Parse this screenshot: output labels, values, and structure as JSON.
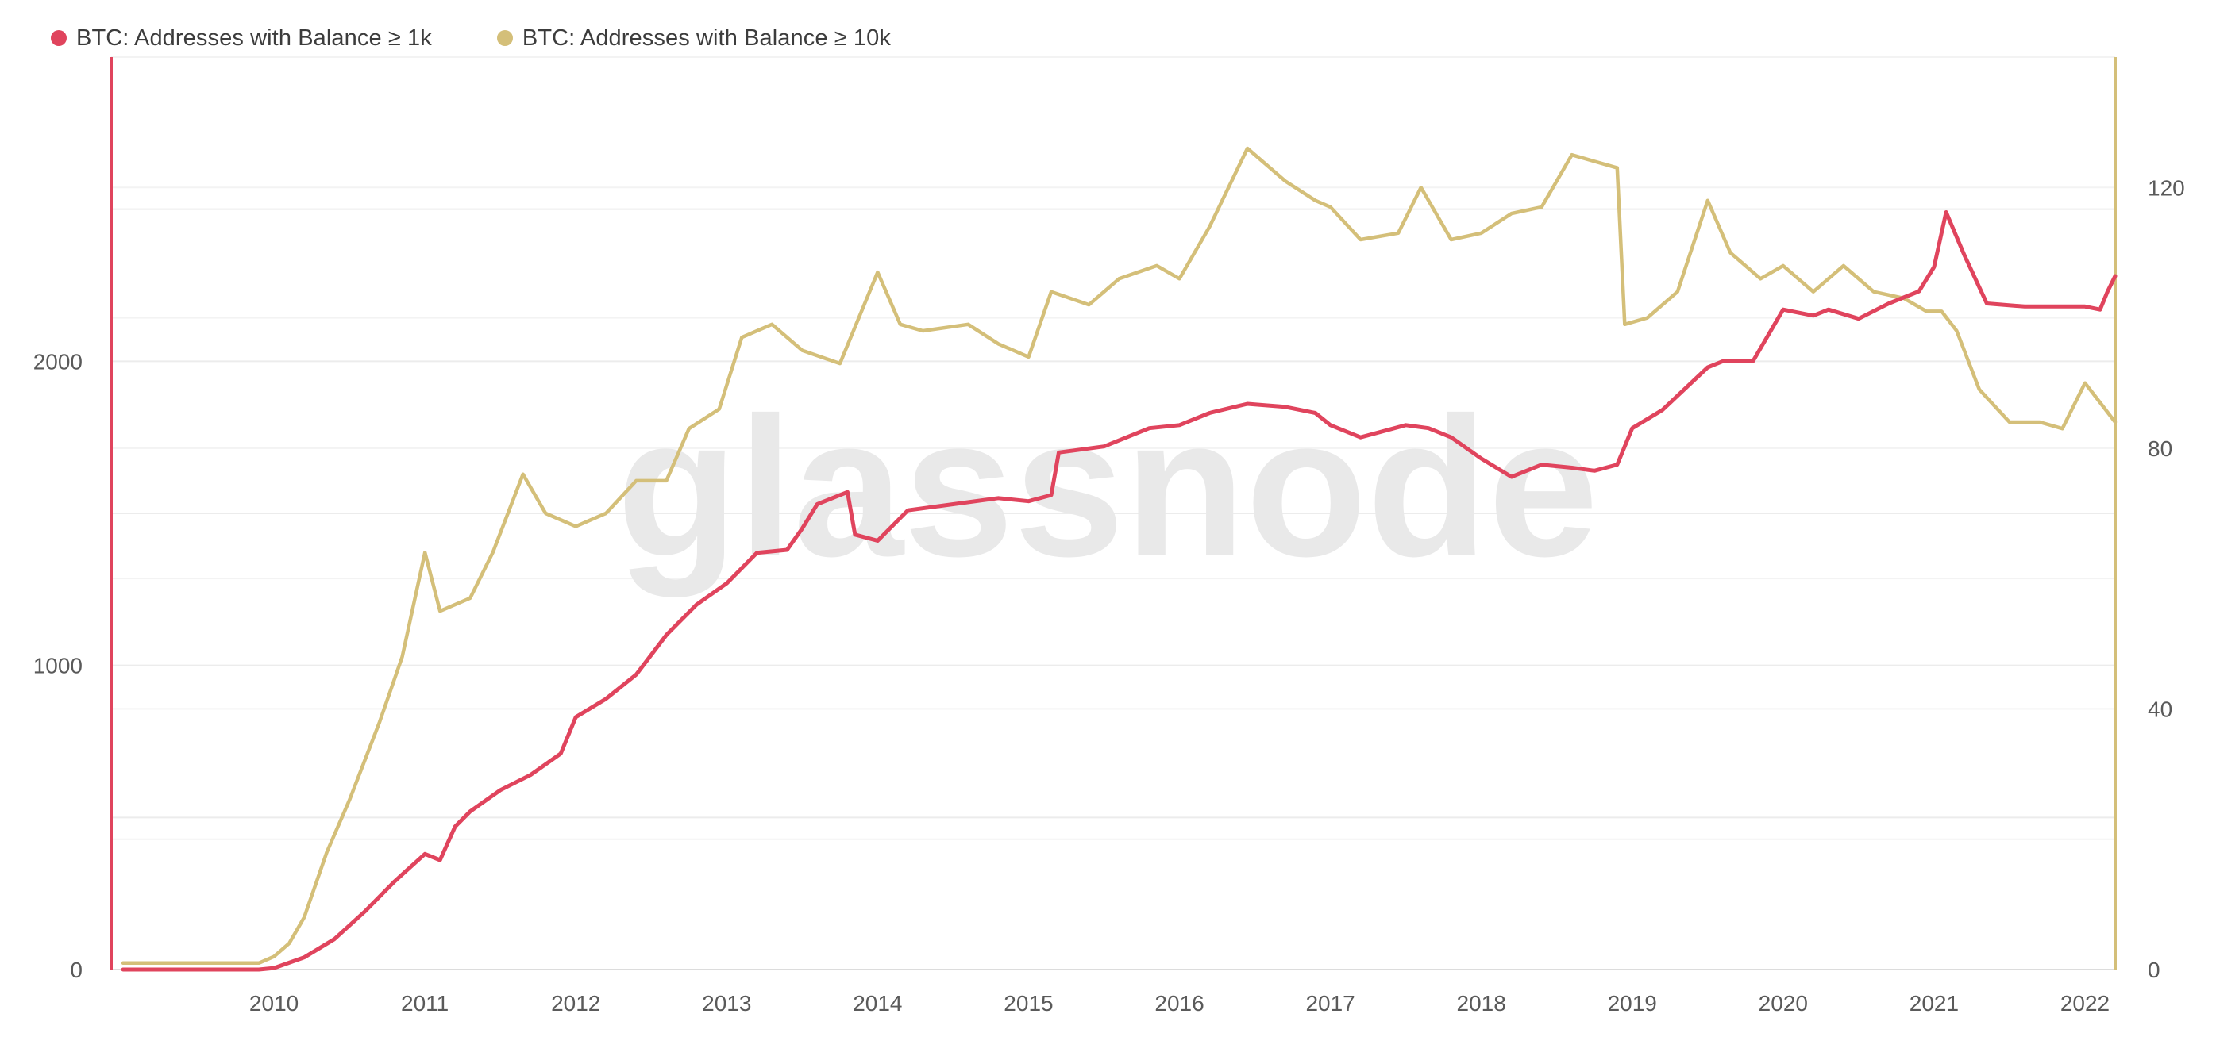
{
  "legend": {
    "series1_label": "BTC: Addresses with Balance ≥ 1k",
    "series2_label": "BTC: Addresses with Balance ≥ 10k"
  },
  "watermark": "glassnode",
  "colors": {
    "series1": "#e0445d",
    "series2": "#d4bf79",
    "grid": "#ececec",
    "axis_text": "#5a5a5a"
  },
  "chart_data": {
    "type": "line",
    "title": "",
    "xlabel": "",
    "ylabel_left": "",
    "ylabel_right": "",
    "x_ticks": [
      "2010",
      "2011",
      "2012",
      "2013",
      "2014",
      "2015",
      "2016",
      "2017",
      "2018",
      "2019",
      "2020",
      "2021",
      "2022"
    ],
    "y_left_ticks": [
      "0",
      "1000",
      "2000"
    ],
    "y_right_ticks": [
      "0",
      "40",
      "80",
      "120"
    ],
    "x_range": [
      2009.0,
      2022.2
    ],
    "y_left_range": [
      0,
      3000
    ],
    "y_right_range": [
      0,
      140
    ],
    "series": [
      {
        "name": "BTC: Addresses with Balance ≥ 1k",
        "axis": "left",
        "x": [
          2009.0,
          2009.5,
          2009.9,
          2010.0,
          2010.2,
          2010.4,
          2010.6,
          2010.8,
          2011.0,
          2011.1,
          2011.2,
          2011.3,
          2011.5,
          2011.7,
          2011.9,
          2012.0,
          2012.2,
          2012.4,
          2012.6,
          2012.8,
          2013.0,
          2013.2,
          2013.4,
          2013.5,
          2013.6,
          2013.8,
          2013.85,
          2014.0,
          2014.2,
          2014.5,
          2014.8,
          2015.0,
          2015.15,
          2015.2,
          2015.5,
          2015.8,
          2016.0,
          2016.2,
          2016.45,
          2016.7,
          2016.9,
          2017.0,
          2017.2,
          2017.5,
          2017.65,
          2017.8,
          2018.0,
          2018.2,
          2018.4,
          2018.6,
          2018.75,
          2018.9,
          2019.0,
          2019.2,
          2019.5,
          2019.6,
          2019.8,
          2020.0,
          2020.2,
          2020.3,
          2020.5,
          2020.7,
          2020.9,
          2021.0,
          2021.08,
          2021.2,
          2021.35,
          2021.6,
          2021.8,
          2022.0,
          2022.1,
          2022.15,
          2022.2
        ],
        "values": [
          0,
          0,
          0,
          5,
          40,
          100,
          190,
          290,
          380,
          360,
          470,
          520,
          590,
          640,
          710,
          830,
          890,
          970,
          1100,
          1200,
          1270,
          1370,
          1380,
          1450,
          1530,
          1570,
          1430,
          1410,
          1510,
          1530,
          1550,
          1540,
          1560,
          1700,
          1720,
          1780,
          1790,
          1830,
          1860,
          1850,
          1830,
          1790,
          1750,
          1790,
          1780,
          1750,
          1680,
          1620,
          1660,
          1650,
          1640,
          1660,
          1780,
          1840,
          1980,
          2000,
          2000,
          2170,
          2150,
          2170,
          2140,
          2190,
          2230,
          2310,
          2490,
          2350,
          2190,
          2180,
          2180,
          2180,
          2170,
          2230,
          2280
        ]
      },
      {
        "name": "BTC: Addresses with Balance ≥ 10k",
        "axis": "right",
        "x": [
          2009.0,
          2009.5,
          2009.9,
          2010.0,
          2010.1,
          2010.2,
          2010.35,
          2010.5,
          2010.7,
          2010.85,
          2011.0,
          2011.1,
          2011.3,
          2011.45,
          2011.65,
          2011.8,
          2012.0,
          2012.2,
          2012.4,
          2012.6,
          2012.75,
          2012.95,
          2013.1,
          2013.3,
          2013.5,
          2013.75,
          2014.0,
          2014.15,
          2014.3,
          2014.6,
          2014.8,
          2015.0,
          2015.15,
          2015.4,
          2015.6,
          2015.85,
          2016.0,
          2016.2,
          2016.45,
          2016.7,
          2016.9,
          2017.0,
          2017.2,
          2017.45,
          2017.6,
          2017.8,
          2018.0,
          2018.2,
          2018.4,
          2018.6,
          2018.75,
          2018.9,
          2018.95,
          2019.1,
          2019.3,
          2019.5,
          2019.65,
          2019.85,
          2020.0,
          2020.2,
          2020.4,
          2020.6,
          2020.8,
          2020.95,
          2021.05,
          2021.15,
          2021.3,
          2021.5,
          2021.7,
          2021.85,
          2022.0,
          2022.1,
          2022.2
        ],
        "values": [
          1,
          1,
          1,
          2,
          4,
          8,
          18,
          26,
          38,
          48,
          64,
          55,
          57,
          64,
          76,
          70,
          68,
          70,
          75,
          75,
          83,
          86,
          97,
          99,
          95,
          93,
          107,
          99,
          98,
          99,
          96,
          94,
          104,
          102,
          106,
          108,
          106,
          114,
          126,
          121,
          118,
          117,
          112,
          113,
          120,
          112,
          113,
          116,
          117,
          125,
          124,
          123,
          99,
          100,
          104,
          118,
          110,
          106,
          108,
          104,
          108,
          104,
          103,
          101,
          101,
          98,
          89,
          84,
          84,
          83,
          90,
          87,
          84
        ]
      }
    ],
    "grid": true
  }
}
